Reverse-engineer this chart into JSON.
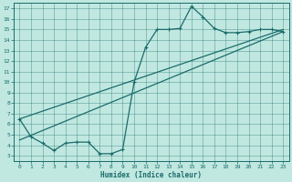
{
  "xlabel": "Humidex (Indice chaleur)",
  "bg_color": "#c0e8e0",
  "line_color": "#1a6b6b",
  "xlim": [
    -0.5,
    23.5
  ],
  "ylim": [
    2.5,
    17.5
  ],
  "xticks": [
    0,
    1,
    2,
    3,
    4,
    5,
    6,
    7,
    8,
    9,
    10,
    11,
    12,
    13,
    14,
    15,
    16,
    17,
    18,
    19,
    20,
    21,
    22,
    23
  ],
  "yticks": [
    3,
    4,
    5,
    6,
    7,
    8,
    9,
    10,
    11,
    12,
    13,
    14,
    15,
    16,
    17
  ],
  "main_x": [
    0,
    1,
    2,
    3,
    4,
    5,
    6,
    7,
    8,
    9,
    10,
    11,
    12,
    13,
    14,
    15,
    16,
    17,
    18,
    19,
    20,
    21,
    22,
    23
  ],
  "main_y": [
    6.5,
    4.8,
    4.2,
    3.5,
    4.2,
    4.3,
    4.3,
    3.2,
    3.2,
    3.6,
    10.0,
    13.3,
    15.0,
    15.0,
    15.1,
    17.2,
    16.2,
    15.1,
    14.7,
    14.7,
    14.8,
    15.0,
    15.0,
    14.8
  ],
  "line2_x": [
    0,
    23
  ],
  "line2_y": [
    6.5,
    15.0
  ],
  "line3_x": [
    0,
    23
  ],
  "line3_y": [
    4.5,
    14.8
  ]
}
